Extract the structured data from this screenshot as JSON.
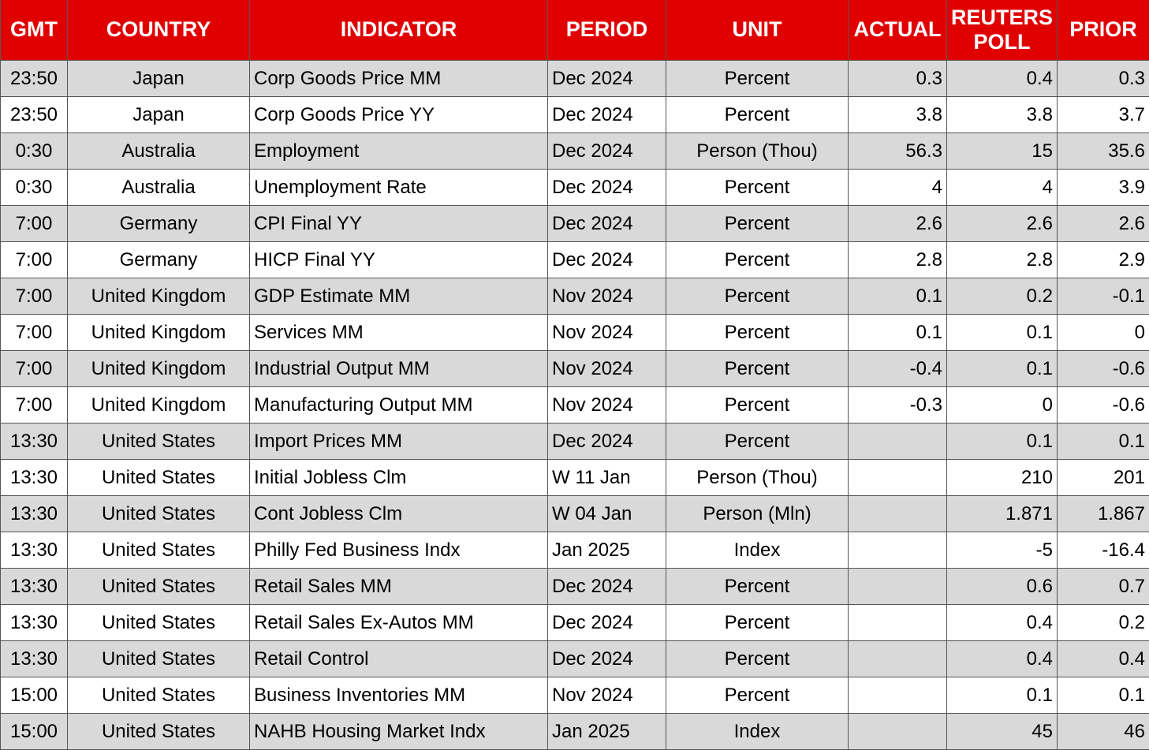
{
  "table": {
    "headers": [
      "GMT",
      "COUNTRY",
      "INDICATOR",
      "PERIOD",
      "UNIT",
      "ACTUAL",
      "REUTERS POLL",
      "PRIOR"
    ],
    "rows": [
      [
        "23:50",
        "Japan",
        "Corp Goods Price MM",
        "Dec 2024",
        "Percent",
        "0.3",
        "0.4",
        "0.3"
      ],
      [
        "23:50",
        "Japan",
        "Corp Goods Price YY",
        "Dec 2024",
        "Percent",
        "3.8",
        "3.8",
        "3.7"
      ],
      [
        "0:30",
        "Australia",
        "Employment",
        "Dec 2024",
        "Person (Thou)",
        "56.3",
        "15",
        "35.6"
      ],
      [
        "0:30",
        "Australia",
        "Unemployment Rate",
        "Dec 2024",
        "Percent",
        "4",
        "4",
        "3.9"
      ],
      [
        "7:00",
        "Germany",
        "CPI Final YY",
        "Dec 2024",
        "Percent",
        "2.6",
        "2.6",
        "2.6"
      ],
      [
        "7:00",
        "Germany",
        "HICP Final YY",
        "Dec 2024",
        "Percent",
        "2.8",
        "2.8",
        "2.9"
      ],
      [
        "7:00",
        "United Kingdom",
        "GDP Estimate MM",
        "Nov 2024",
        "Percent",
        "0.1",
        "0.2",
        "-0.1"
      ],
      [
        "7:00",
        "United Kingdom",
        "Services MM",
        "Nov 2024",
        "Percent",
        "0.1",
        "0.1",
        "0"
      ],
      [
        "7:00",
        "United Kingdom",
        "Industrial Output MM",
        "Nov 2024",
        "Percent",
        "-0.4",
        "0.1",
        "-0.6"
      ],
      [
        "7:00",
        "United Kingdom",
        "Manufacturing Output MM",
        "Nov 2024",
        "Percent",
        "-0.3",
        "0",
        "-0.6"
      ],
      [
        "13:30",
        "United States",
        "Import Prices MM",
        "Dec 2024",
        "Percent",
        null,
        "0.1",
        "0.1"
      ],
      [
        "13:30",
        "United States",
        "Initial Jobless Clm",
        "W 11 Jan",
        "Person (Thou)",
        null,
        "210",
        "201"
      ],
      [
        "13:30",
        "United States",
        "Cont Jobless Clm",
        "W 04 Jan",
        "Person (Mln)",
        null,
        "1.871",
        "1.867"
      ],
      [
        "13:30",
        "United States",
        "Philly Fed Business Indx",
        "Jan 2025",
        "Index",
        null,
        "-5",
        "-16.4"
      ],
      [
        "13:30",
        "United States",
        "Retail Sales MM",
        "Dec 2024",
        "Percent",
        null,
        "0.6",
        "0.7"
      ],
      [
        "13:30",
        "United States",
        "Retail Sales Ex-Autos MM",
        "Dec 2024",
        "Percent",
        null,
        "0.4",
        "0.2"
      ],
      [
        "13:30",
        "United States",
        "Retail Control",
        "Dec 2024",
        "Percent",
        null,
        "0.4",
        "0.4"
      ],
      [
        "15:00",
        "United States",
        "Business Inventories MM",
        "Nov 2024",
        "Percent",
        null,
        "0.1",
        "0.1"
      ],
      [
        "15:00",
        "United States",
        "NAHB Housing Market Indx",
        "Jan 2025",
        "Index",
        null,
        "45",
        "46"
      ]
    ]
  }
}
